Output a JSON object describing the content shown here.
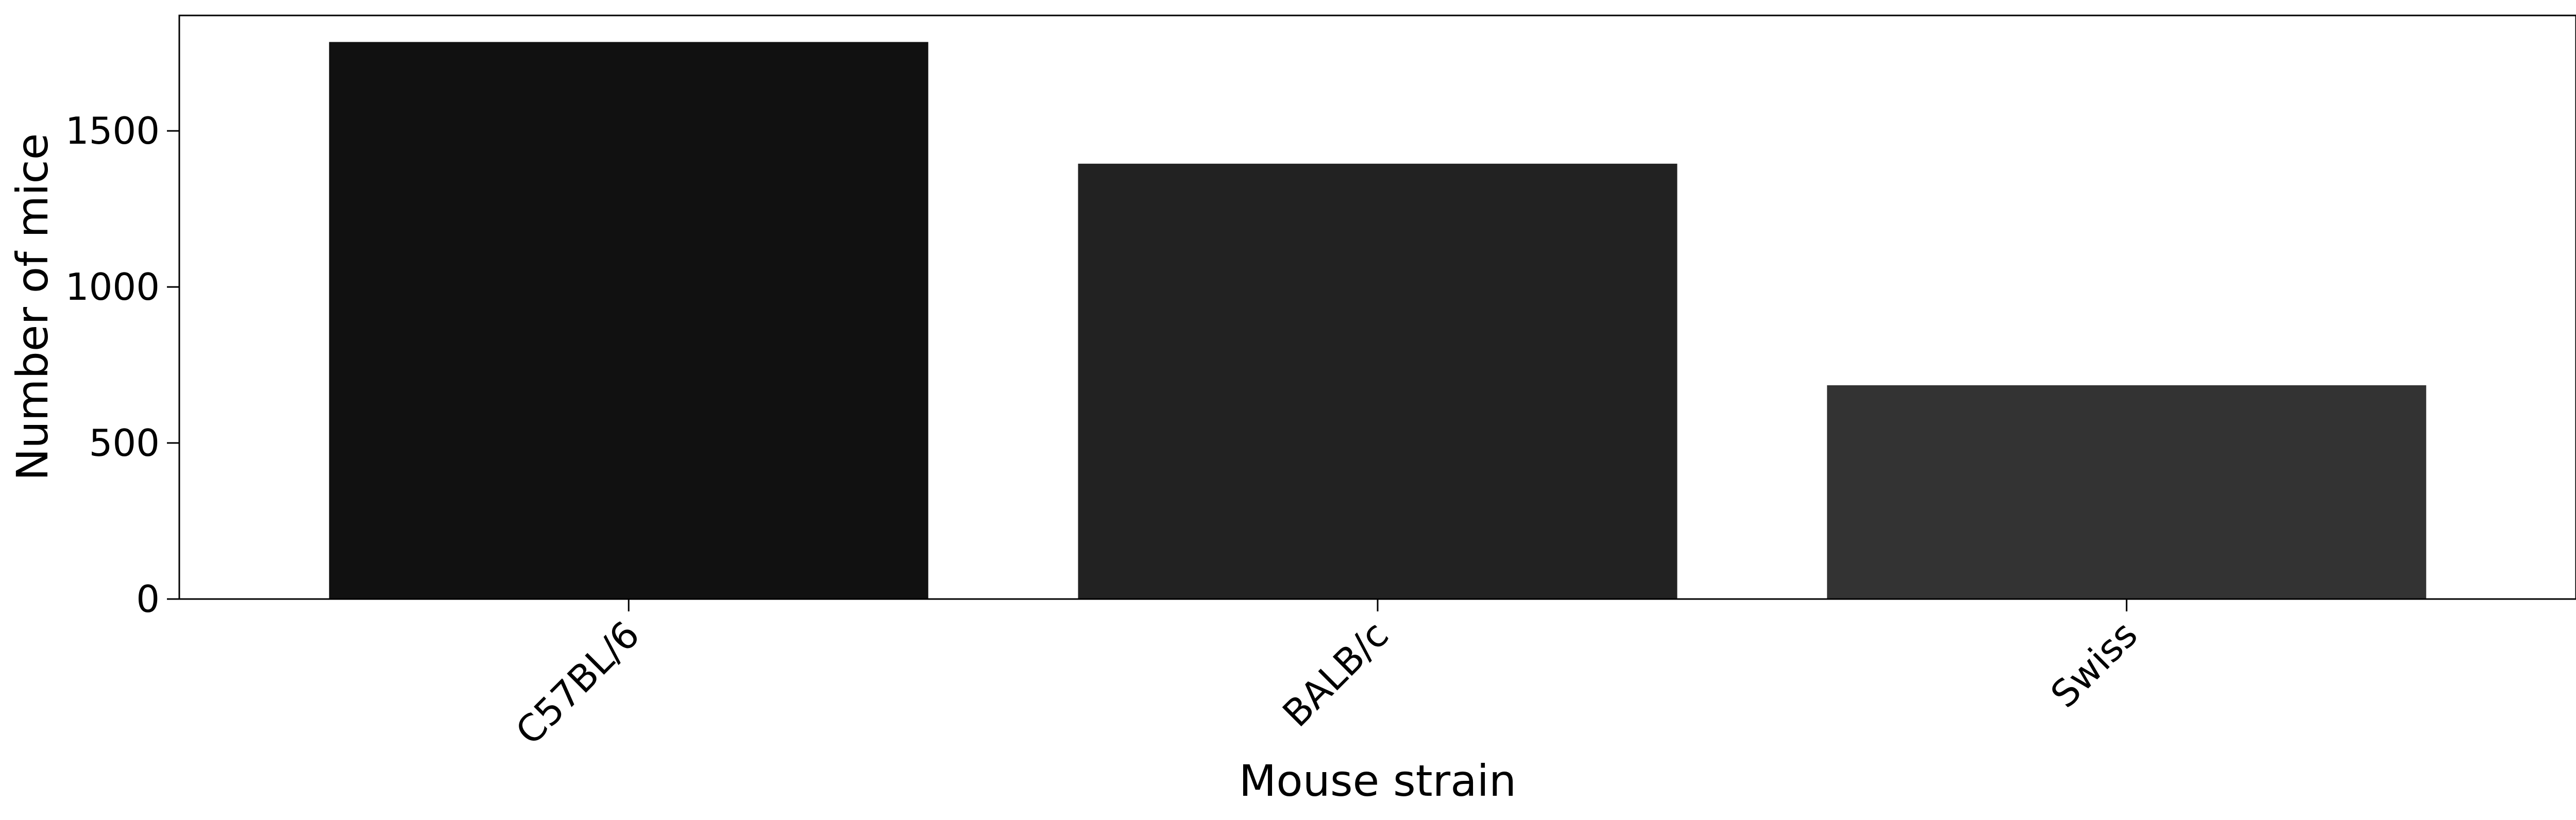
{
  "chart_data": {
    "type": "bar",
    "title": "",
    "xlabel": "Mouse strain",
    "ylabel": "Number of mice",
    "categories": [
      "C57BL/6",
      "BALB/c",
      "Swiss"
    ],
    "values": [
      1785,
      1395,
      685
    ],
    "colors": [
      "#111111",
      "#222222",
      "#333333"
    ],
    "ylim": [
      0,
      1870
    ],
    "yticks": [
      0,
      500,
      1000,
      1500
    ],
    "grid": false,
    "legend": "none"
  }
}
